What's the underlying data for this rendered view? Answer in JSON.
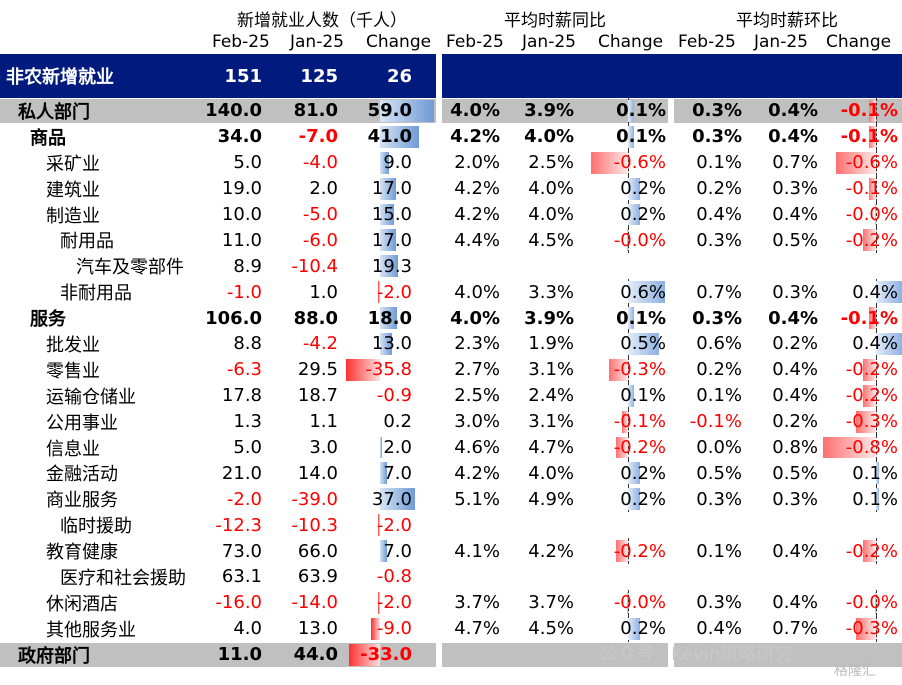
{
  "header": {
    "group1": "新增就业人数（千人）",
    "group2": "平均时薪同比",
    "group3": "平均时薪环比",
    "cols": [
      "Feb-25",
      "Jan-25",
      "Change",
      "Feb-25",
      "Jan-25",
      "Change",
      "Feb-25",
      "Jan-25",
      "Change"
    ]
  },
  "nonfarm": {
    "label": "非农新增就业",
    "feb": "151",
    "jan": "125",
    "chg": "26"
  },
  "rows": [
    {
      "label": "私人部门",
      "indent": 0,
      "bold": true,
      "grey": true,
      "feb": "140.0",
      "jan": "81.0",
      "chg": "59.0",
      "chgv": 59.0,
      "yf": "4.0%",
      "yj": "3.9%",
      "yc": "0.1%",
      "ycv": 0.1,
      "mf": "0.3%",
      "mj": "0.4%",
      "mc": "-0.1%",
      "mcv": -0.1
    },
    {
      "label": "商品",
      "indent": 1,
      "bold": true,
      "feb": "34.0",
      "jan": "-7.0",
      "chg": "41.0",
      "chgv": 41.0,
      "yf": "4.2%",
      "yj": "4.0%",
      "yc": "0.1%",
      "ycv": 0.1,
      "mf": "0.3%",
      "mj": "0.4%",
      "mc": "-0.1%",
      "mcv": -0.1
    },
    {
      "label": "采矿业",
      "indent": 2,
      "feb": "5.0",
      "jan": "-4.0",
      "chg": "9.0",
      "chgv": 9.0,
      "yf": "2.0%",
      "yj": "2.5%",
      "yc": "-0.6%",
      "ycv": -0.6,
      "mf": "0.1%",
      "mj": "0.7%",
      "mc": "-0.6%",
      "mcv": -0.6
    },
    {
      "label": "建筑业",
      "indent": 2,
      "feb": "19.0",
      "jan": "2.0",
      "chg": "17.0",
      "chgv": 17.0,
      "yf": "4.2%",
      "yj": "4.0%",
      "yc": "0.2%",
      "ycv": 0.2,
      "mf": "0.2%",
      "mj": "0.3%",
      "mc": "-0.1%",
      "mcv": -0.1
    },
    {
      "label": "制造业",
      "indent": 2,
      "feb": "10.0",
      "jan": "-5.0",
      "chg": "15.0",
      "chgv": 15.0,
      "yf": "4.2%",
      "yj": "4.0%",
      "yc": "0.2%",
      "ycv": 0.2,
      "mf": "0.4%",
      "mj": "0.4%",
      "mc": "-0.0%",
      "mcv": -0.02
    },
    {
      "label": "耐用品",
      "indent": 3,
      "feb": "11.0",
      "jan": "-6.0",
      "chg": "17.0",
      "chgv": 17.0,
      "yf": "4.4%",
      "yj": "4.5%",
      "yc": "-0.0%",
      "ycv": -0.02,
      "mf": "0.3%",
      "mj": "0.5%",
      "mc": "-0.2%",
      "mcv": -0.2
    },
    {
      "label": "汽车及零部件",
      "indent": 4,
      "feb": "8.9",
      "jan": "-10.4",
      "chg": "19.3",
      "chgv": 19.3,
      "yf": "",
      "yj": "",
      "yc": "",
      "ycv": 0,
      "mf": "",
      "mj": "",
      "mc": "",
      "mcv": 0
    },
    {
      "label": "非耐用品",
      "indent": 3,
      "feb": "-1.0",
      "jan": "1.0",
      "chg": "-2.0",
      "chgv": -2.0,
      "yf": "4.0%",
      "yj": "3.3%",
      "yc": "0.6%",
      "ycv": 0.6,
      "mf": "0.7%",
      "mj": "0.3%",
      "mc": "0.4%",
      "mcv": 0.4
    },
    {
      "label": "服务",
      "indent": 1,
      "bold": true,
      "feb": "106.0",
      "jan": "88.0",
      "chg": "18.0",
      "chgv": 18.0,
      "yf": "4.0%",
      "yj": "3.9%",
      "yc": "0.1%",
      "ycv": 0.1,
      "mf": "0.3%",
      "mj": "0.4%",
      "mc": "-0.1%",
      "mcv": -0.1
    },
    {
      "label": "批发业",
      "indent": 2,
      "feb": "8.8",
      "jan": "-4.2",
      "chg": "13.0",
      "chgv": 13.0,
      "yf": "2.3%",
      "yj": "1.9%",
      "yc": "0.5%",
      "ycv": 0.5,
      "mf": "0.6%",
      "mj": "0.2%",
      "mc": "0.4%",
      "mcv": 0.4
    },
    {
      "label": "零售业",
      "indent": 2,
      "feb": "-6.3",
      "jan": "29.5",
      "chg": "-35.8",
      "chgv": -35.8,
      "yf": "2.7%",
      "yj": "3.1%",
      "yc": "-0.3%",
      "ycv": -0.3,
      "mf": "0.2%",
      "mj": "0.4%",
      "mc": "-0.2%",
      "mcv": -0.2
    },
    {
      "label": "运输仓储业",
      "indent": 2,
      "feb": "17.8",
      "jan": "18.7",
      "chg": "-0.9",
      "chgv": -0.9,
      "yf": "2.5%",
      "yj": "2.4%",
      "yc": "0.1%",
      "ycv": 0.1,
      "mf": "0.1%",
      "mj": "0.4%",
      "mc": "-0.2%",
      "mcv": -0.2
    },
    {
      "label": "公用事业",
      "indent": 2,
      "feb": "1.3",
      "jan": "1.1",
      "chg": "0.2",
      "chgv": 0.2,
      "yf": "3.0%",
      "yj": "3.1%",
      "yc": "-0.1%",
      "ycv": -0.1,
      "mf": "-0.1%",
      "mj": "0.2%",
      "mc": "-0.3%",
      "mcv": -0.3
    },
    {
      "label": "信息业",
      "indent": 2,
      "feb": "5.0",
      "jan": "3.0",
      "chg": "2.0",
      "chgv": 2.0,
      "yf": "4.6%",
      "yj": "4.7%",
      "yc": "-0.2%",
      "ycv": -0.2,
      "mf": "0.0%",
      "mj": "0.8%",
      "mc": "-0.8%",
      "mcv": -0.8
    },
    {
      "label": "金融活动",
      "indent": 2,
      "feb": "21.0",
      "jan": "14.0",
      "chg": "7.0",
      "chgv": 7.0,
      "yf": "4.2%",
      "yj": "4.0%",
      "yc": "0.2%",
      "ycv": 0.2,
      "mf": "0.5%",
      "mj": "0.5%",
      "mc": "0.1%",
      "mcv": 0.05
    },
    {
      "label": "商业服务",
      "indent": 2,
      "feb": "-2.0",
      "jan": "-39.0",
      "chg": "37.0",
      "chgv": 37.0,
      "yf": "5.1%",
      "yj": "4.9%",
      "yc": "0.2%",
      "ycv": 0.2,
      "mf": "0.3%",
      "mj": "0.3%",
      "mc": "0.1%",
      "mcv": 0.05
    },
    {
      "label": "临时援助",
      "indent": 3,
      "feb": "-12.3",
      "jan": "-10.3",
      "chg": "-2.0",
      "chgv": -2.0,
      "yf": "",
      "yj": "",
      "yc": "",
      "ycv": 0,
      "mf": "",
      "mj": "",
      "mc": "",
      "mcv": 0
    },
    {
      "label": "教育健康",
      "indent": 2,
      "feb": "73.0",
      "jan": "66.0",
      "chg": "7.0",
      "chgv": 7.0,
      "yf": "4.1%",
      "yj": "4.2%",
      "yc": "-0.2%",
      "ycv": -0.2,
      "mf": "0.1%",
      "mj": "0.4%",
      "mc": "-0.2%",
      "mcv": -0.2
    },
    {
      "label": "医疗和社会援助",
      "indent": 3,
      "feb": "63.1",
      "jan": "63.9",
      "chg": "-0.8",
      "chgv": -0.8,
      "yf": "",
      "yj": "",
      "yc": "",
      "ycv": 0,
      "mf": "",
      "mj": "",
      "mc": "",
      "mcv": 0
    },
    {
      "label": "休闲酒店",
      "indent": 2,
      "feb": "-16.0",
      "jan": "-14.0",
      "chg": "-2.0",
      "chgv": -2.0,
      "yf": "3.7%",
      "yj": "3.7%",
      "yc": "-0.0%",
      "ycv": -0.02,
      "mf": "0.3%",
      "mj": "0.4%",
      "mc": "-0.0%",
      "mcv": -0.02
    },
    {
      "label": "其他服务业",
      "indent": 2,
      "feb": "4.0",
      "jan": "13.0",
      "chg": "-9.0",
      "chgv": -9.0,
      "yf": "4.7%",
      "yj": "4.5%",
      "yc": "0.2%",
      "ycv": 0.2,
      "mf": "0.4%",
      "mj": "0.7%",
      "mc": "-0.3%",
      "mcv": -0.3
    },
    {
      "label": "政府部门",
      "indent": 0,
      "bold": true,
      "grey": true,
      "feb": "11.0",
      "jan": "44.0",
      "chg": "-33.0",
      "chgv": -33.0,
      "yf": "",
      "yj": "",
      "yc": "",
      "ycv": 0,
      "mf": "",
      "mj": "",
      "mc": "",
      "mcv": 0
    }
  ],
  "watermark": "公众号 · Kevin策略研究",
  "watermark2": "格隆汇",
  "colors": {
    "navy": "#001a7d",
    "grey": "#c0c0c0",
    "neg": "#ff0000",
    "posbar": "#6f9bd6",
    "negbar": "#ff3030"
  }
}
